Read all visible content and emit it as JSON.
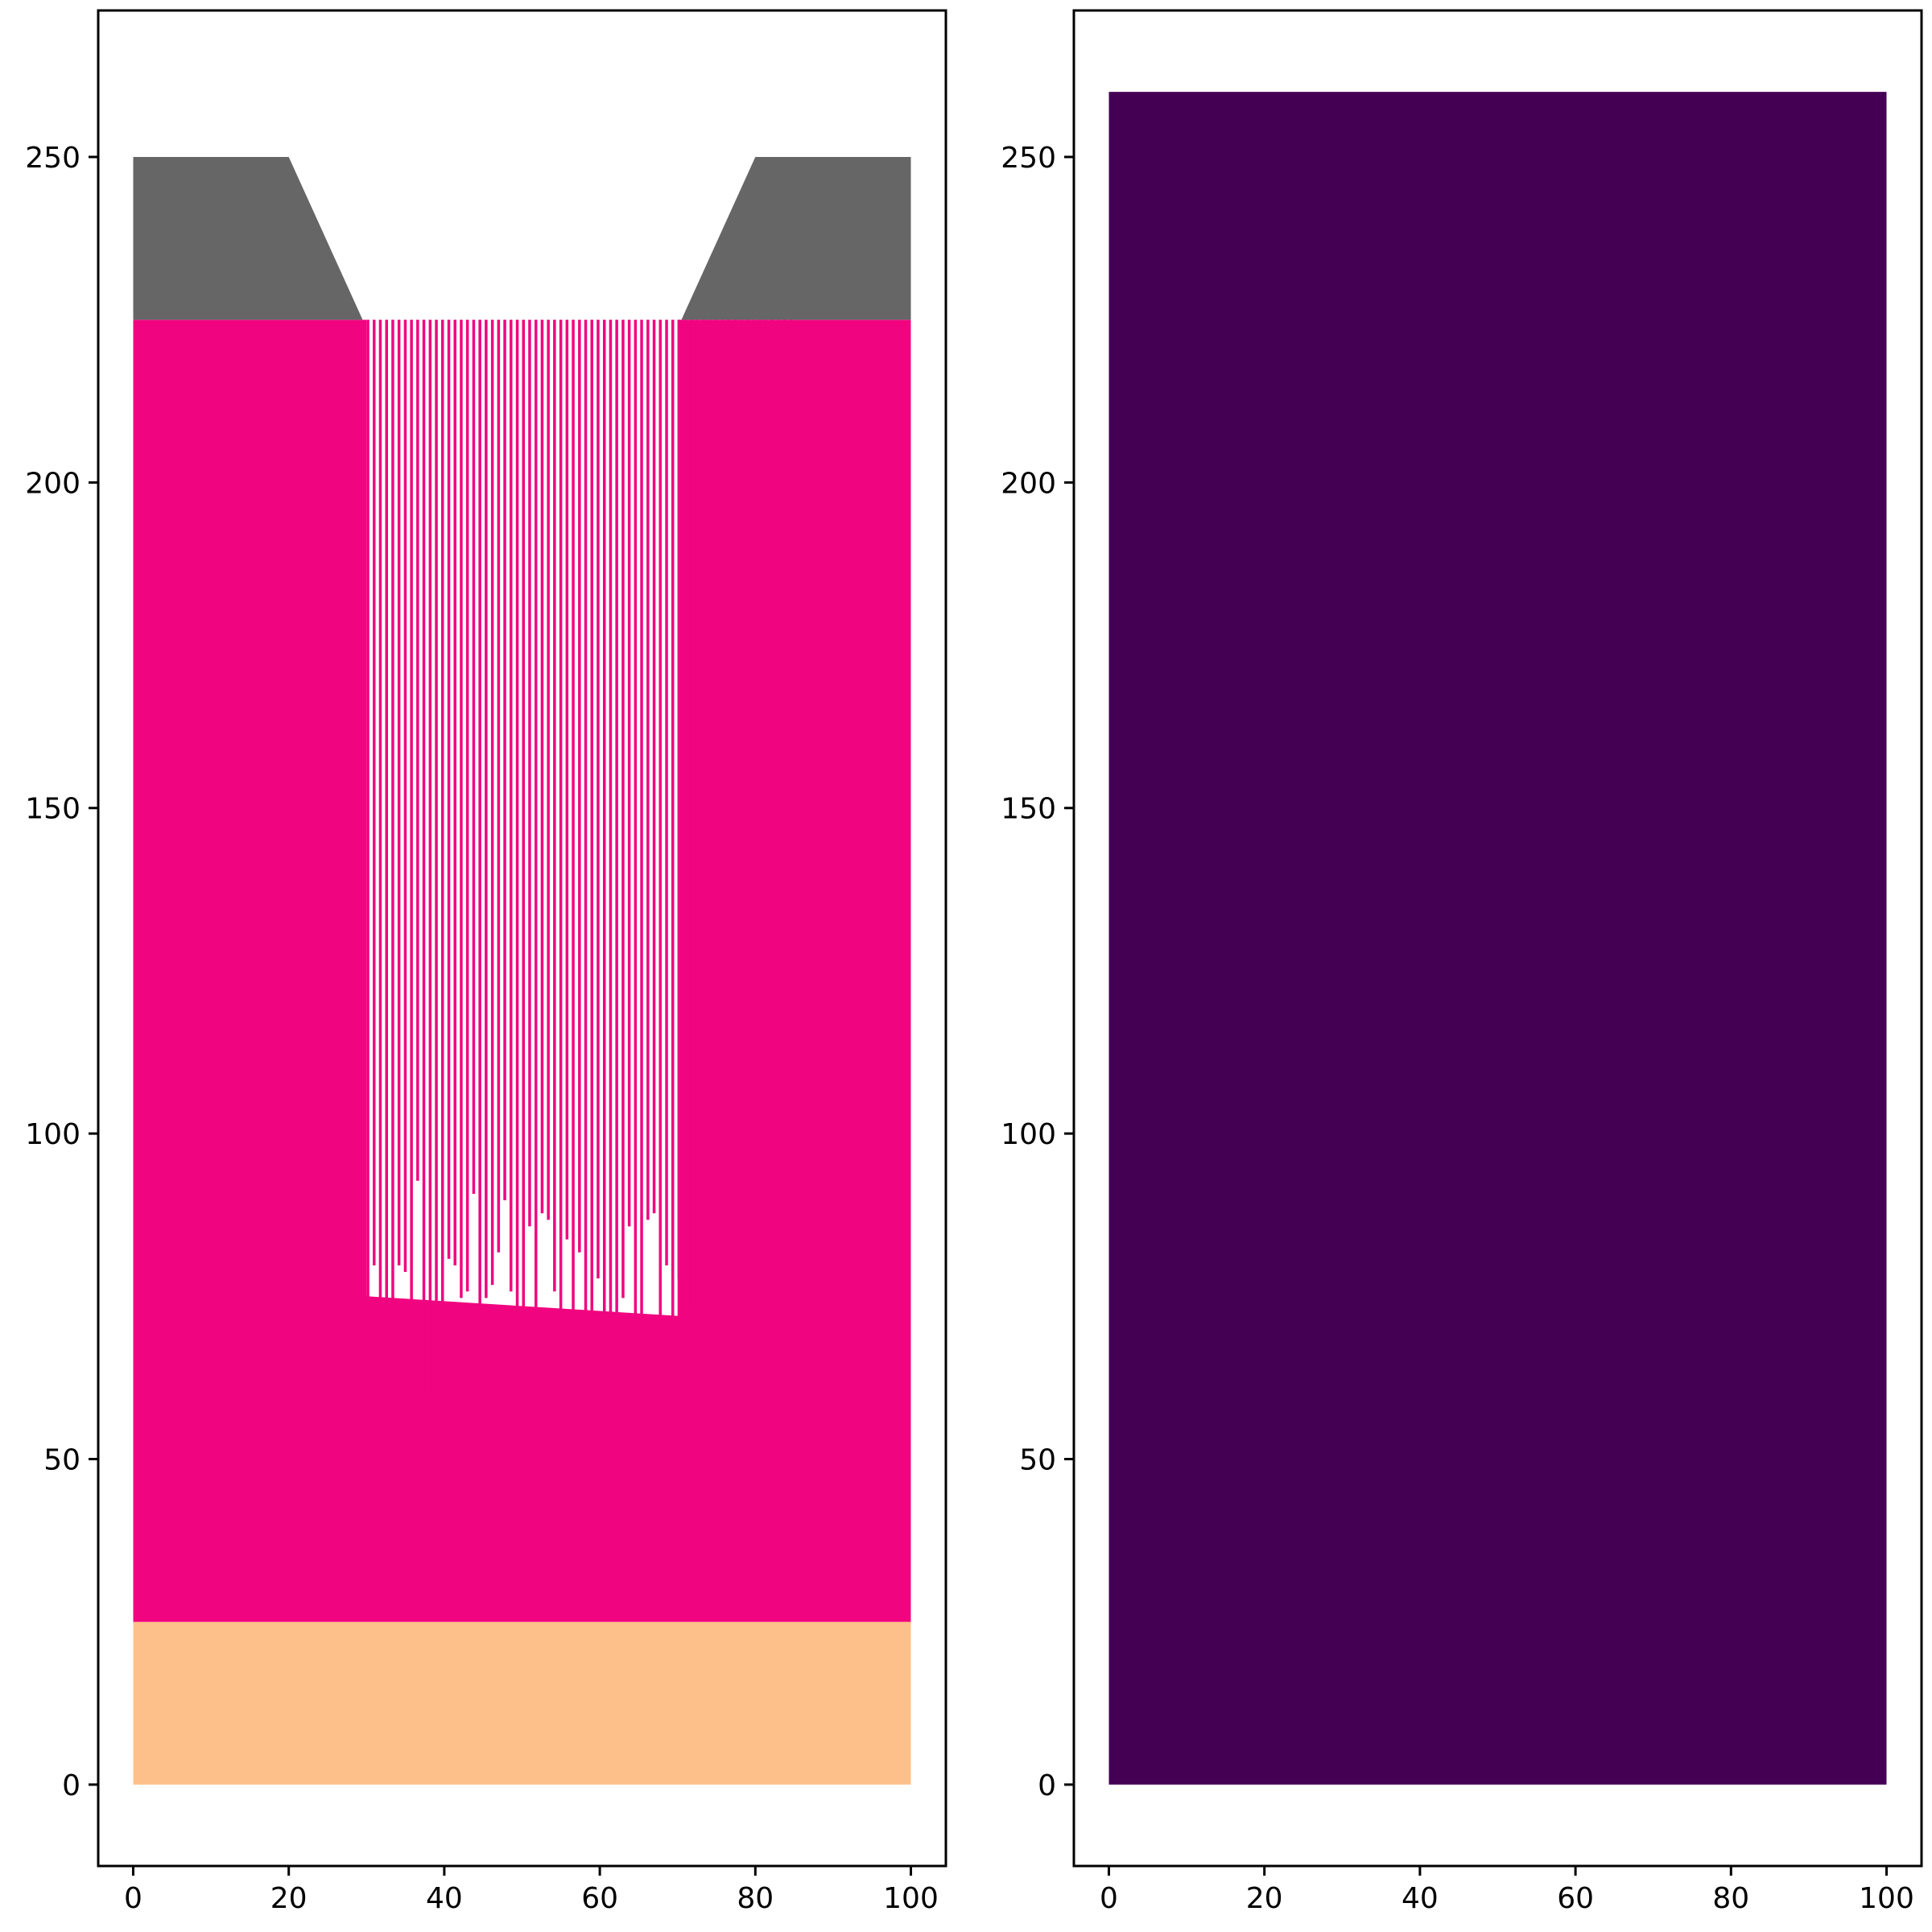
{
  "chart_data": [
    {
      "type": "area",
      "panel": "left",
      "xlim": [
        -4.5,
        104.5
      ],
      "ylim": [
        -12.5,
        272.5
      ],
      "x_ticks": [
        0,
        20,
        40,
        60,
        80,
        100
      ],
      "y_ticks": [
        0,
        50,
        100,
        150,
        200,
        250
      ],
      "grid": false,
      "legend": "none",
      "regions": [
        {
          "label": "",
          "color": "#fdc08a",
          "polygon": [
            [
              0,
              0
            ],
            [
              100,
              0
            ],
            [
              100,
              25
            ],
            [
              0,
              25
            ]
          ]
        },
        {
          "label": "",
          "color": "#f0047f",
          "polygon": [
            [
              0,
              25
            ],
            [
              100,
              25
            ],
            [
              100,
              225
            ],
            [
              70,
              225
            ],
            [
              70,
              72
            ],
            [
              30,
              75
            ],
            [
              30,
              225
            ],
            [
              0,
              225
            ]
          ]
        },
        {
          "label": "",
          "color": "#666666",
          "polygon": [
            [
              0,
              225
            ],
            [
              29.5,
              225
            ],
            [
              20,
              250
            ],
            [
              0,
              250
            ]
          ]
        },
        {
          "label": "",
          "color": "#666666",
          "polygon": [
            [
              70.5,
              225
            ],
            [
              100,
              225
            ],
            [
              100,
              250
            ],
            [
              80,
              250
            ]
          ]
        }
      ],
      "etch_front": {
        "color": "#f0047f",
        "x_start": 30,
        "x_step": 0.8,
        "y": [
          75,
          80,
          74,
          68,
          56,
          80,
          79,
          59,
          93,
          61,
          55,
          68,
          60,
          81,
          80,
          75,
          76,
          91,
          74,
          75,
          77,
          82,
          90,
          76,
          71,
          69,
          86,
          69,
          88,
          87,
          76,
          64,
          84,
          70,
          82,
          72,
          73,
          78,
          66,
          54,
          68,
          75,
          86,
          54,
          63,
          87,
          88,
          66,
          80,
          66,
          78,
          84,
          69,
          73,
          69,
          85,
          72,
          89,
          93,
          75,
          66,
          75,
          78,
          68,
          74,
          83,
          69,
          76,
          72
        ]
      }
    },
    {
      "type": "area",
      "panel": "right",
      "xlim": [
        -4.5,
        104.5
      ],
      "ylim": [
        -12.5,
        272.5
      ],
      "x_ticks": [
        0,
        20,
        40,
        60,
        80,
        100
      ],
      "y_ticks": [
        0,
        50,
        100,
        150,
        200,
        250
      ],
      "grid": false,
      "legend": "none",
      "regions": [
        {
          "label": "",
          "color": "#440154",
          "polygon": [
            [
              0,
              0
            ],
            [
              100,
              0
            ],
            [
              100,
              260
            ],
            [
              0,
              260
            ]
          ]
        }
      ]
    }
  ]
}
